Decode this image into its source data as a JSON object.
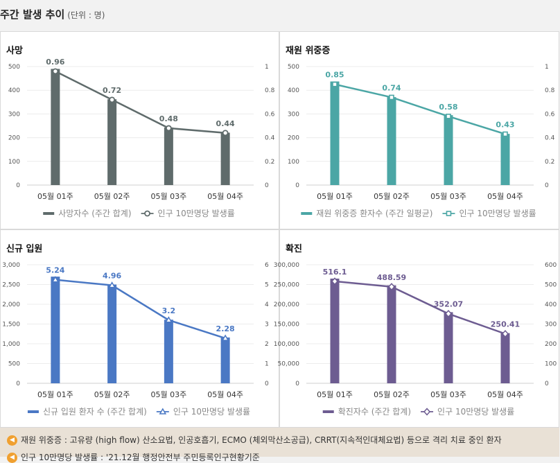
{
  "page": {
    "title": "주간 발생 추이",
    "unit": "(단위 : 명)"
  },
  "colors": {
    "deaths": "#5f6b6b",
    "icu": "#4ba6a5",
    "admissions": "#4a78c4",
    "confirmed": "#6d5c91"
  },
  "chart_data": [
    {
      "id": "deaths",
      "type": "bar",
      "title": "사망",
      "categories": [
        "05월 01주",
        "05월 02주",
        "05월 03주",
        "05월 04주"
      ],
      "series": [
        {
          "name": "사망자수 (주간 합계)",
          "type": "bar",
          "axis": "left",
          "values": [
            490,
            362,
            243,
            221
          ]
        },
        {
          "name": "인구 10만명당 발생률",
          "type": "line",
          "axis": "right",
          "marker": "circle",
          "values": [
            0.96,
            0.72,
            0.48,
            0.44
          ]
        }
      ],
      "data_labels": [
        "0.96",
        "0.72",
        "0.48",
        "0.44"
      ],
      "ylim_left": [
        0,
        500
      ],
      "yticks_left": [
        "0",
        "100",
        "200",
        "300",
        "400",
        "500"
      ],
      "ylim_right": [
        0,
        1
      ],
      "yticks_right": [
        "0",
        "0.2",
        "0.4",
        "0.6",
        "0.8",
        "1"
      ],
      "legend_position": "bottom"
    },
    {
      "id": "icu",
      "type": "bar",
      "title": "재원 위중증",
      "categories": [
        "05월 01주",
        "05월 02주",
        "05월 03주",
        "05월 04주"
      ],
      "series": [
        {
          "name": "재원 위중증 환자수 (주간 일평균)",
          "type": "bar",
          "axis": "left",
          "values": [
            437,
            371,
            295,
            216
          ]
        },
        {
          "name": "인구 10만명당 발생률",
          "type": "line",
          "axis": "right",
          "marker": "square",
          "values": [
            0.85,
            0.74,
            0.58,
            0.43
          ]
        }
      ],
      "data_labels": [
        "0.85",
        "0.74",
        "0.58",
        "0.43"
      ],
      "ylim_left": [
        0,
        500
      ],
      "yticks_left": [
        "0",
        "100",
        "200",
        "300",
        "400",
        "500"
      ],
      "ylim_right": [
        0,
        1
      ],
      "yticks_right": [
        "0",
        "0.2",
        "0.4",
        "0.6",
        "0.8",
        "1"
      ],
      "legend_position": "bottom"
    },
    {
      "id": "admissions",
      "type": "bar",
      "title": "신규 입원",
      "categories": [
        "05월 01주",
        "05월 02주",
        "05월 03주",
        "05월 04주"
      ],
      "series": [
        {
          "name": "신규 입원 환자 수 (주간 합계)",
          "type": "bar",
          "axis": "left",
          "values": [
            2700,
            2500,
            1610,
            1160
          ]
        },
        {
          "name": "인구 10만명당 발생률",
          "type": "line",
          "axis": "right",
          "marker": "triangle",
          "values": [
            5.24,
            4.96,
            3.2,
            2.28
          ]
        }
      ],
      "data_labels": [
        "5.24",
        "4.96",
        "3.2",
        "2.28"
      ],
      "ylim_left": [
        0,
        3000
      ],
      "yticks_left": [
        "0",
        "500",
        "1,000",
        "1,500",
        "2,000",
        "2,500",
        "3,000"
      ],
      "ylim_right": [
        0,
        6
      ],
      "yticks_right": [
        "0",
        "1",
        "2",
        "3",
        "4",
        "5",
        "6"
      ],
      "legend_position": "bottom"
    },
    {
      "id": "confirmed",
      "type": "bar",
      "title": "확진",
      "categories": [
        "05월 01주",
        "05월 02주",
        "05월 03주",
        "05월 04주"
      ],
      "series": [
        {
          "name": "확진자수 (주간 합계)",
          "type": "bar",
          "axis": "left",
          "values": [
            265000,
            248000,
            180000,
            127000
          ]
        },
        {
          "name": "인구 10만명당 발생률",
          "type": "line",
          "axis": "right",
          "marker": "diamond",
          "values": [
            516.1,
            488.59,
            352.07,
            250.41
          ]
        }
      ],
      "data_labels": [
        "516.1",
        "488.59",
        "352.07",
        "250.41"
      ],
      "ylim_left": [
        0,
        300000
      ],
      "yticks_left": [
        "0",
        "50,000",
        "100,000",
        "150,000",
        "200,000",
        "250,000",
        "300,000"
      ],
      "ylim_right": [
        0,
        600
      ],
      "yticks_right": [
        "0",
        "100",
        "200",
        "300",
        "400",
        "500",
        "600"
      ],
      "legend_position": "bottom"
    }
  ],
  "notes": [
    {
      "icon": "speaker-icon",
      "text": "재원 위중증 : 고유량 (high flow) 산소요법, 인공호흡기, ECMO (체외막산소공급), CRRT(지속적인대체요법) 등으로 격리 치료 중인 환자"
    },
    {
      "icon": "speaker-icon",
      "text": "인구 10만명당 발생률 : '21.12월 행정안전부 주민등록인구현황기준"
    }
  ]
}
